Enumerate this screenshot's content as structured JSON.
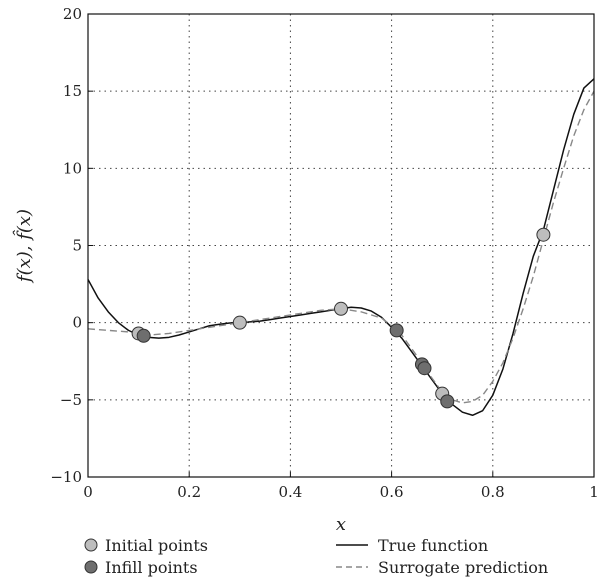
{
  "chart_data": {
    "type": "line",
    "xlabel": "x",
    "ylabel": "f(x), f̂(x)",
    "xlim": [
      0,
      1
    ],
    "ylim": [
      -10,
      20
    ],
    "x_ticks": [
      "0",
      "0.2",
      "0.4",
      "0.6",
      "0.8",
      "1"
    ],
    "y_ticks": [
      "−10",
      "−5",
      "0",
      "5",
      "10",
      "15",
      "20"
    ],
    "grid": true,
    "legend": {
      "placement": "bottom",
      "entries": [
        "Initial points",
        "Infill points",
        "True function",
        "Surrogate prediction"
      ]
    },
    "series": [
      {
        "name": "True function",
        "style": "solid",
        "color": "#111111",
        "x": [
          0.0,
          0.02,
          0.04,
          0.06,
          0.08,
          0.1,
          0.12,
          0.14,
          0.16,
          0.18,
          0.2,
          0.22,
          0.24,
          0.26,
          0.28,
          0.3,
          0.32,
          0.34,
          0.36,
          0.38,
          0.4,
          0.42,
          0.44,
          0.46,
          0.48,
          0.5,
          0.52,
          0.54,
          0.56,
          0.58,
          0.6,
          0.62,
          0.64,
          0.66,
          0.68,
          0.7,
          0.72,
          0.74,
          0.76,
          0.78,
          0.8,
          0.82,
          0.84,
          0.86,
          0.88,
          0.9,
          0.92,
          0.94,
          0.96,
          0.98,
          1.0
        ],
        "y": [
          2.8,
          1.6,
          0.7,
          0.0,
          -0.5,
          -0.8,
          -0.95,
          -1.0,
          -0.95,
          -0.8,
          -0.6,
          -0.4,
          -0.2,
          -0.1,
          -0.02,
          0.0,
          0.05,
          0.1,
          0.2,
          0.3,
          0.4,
          0.5,
          0.6,
          0.7,
          0.8,
          0.9,
          1.0,
          0.95,
          0.75,
          0.35,
          -0.3,
          -1.0,
          -1.9,
          -2.8,
          -3.7,
          -4.6,
          -5.3,
          -5.8,
          -6.0,
          -5.7,
          -4.7,
          -3.0,
          -0.7,
          1.9,
          4.3,
          6.0,
          8.6,
          11.2,
          13.5,
          15.2,
          15.8
        ]
      },
      {
        "name": "Surrogate prediction",
        "style": "dashed",
        "color": "#888888",
        "x": [
          0.0,
          0.04,
          0.08,
          0.1,
          0.12,
          0.16,
          0.2,
          0.24,
          0.28,
          0.3,
          0.34,
          0.38,
          0.42,
          0.46,
          0.5,
          0.54,
          0.58,
          0.6,
          0.62,
          0.64,
          0.66,
          0.68,
          0.7,
          0.72,
          0.74,
          0.76,
          0.78,
          0.8,
          0.82,
          0.84,
          0.86,
          0.88,
          0.9,
          0.92,
          0.94,
          0.96,
          0.98,
          1.0
        ],
        "y": [
          -0.4,
          -0.5,
          -0.6,
          -0.7,
          -0.8,
          -0.7,
          -0.5,
          -0.3,
          -0.1,
          0.0,
          0.2,
          0.4,
          0.6,
          0.8,
          0.9,
          0.7,
          0.3,
          -0.2,
          -0.8,
          -1.7,
          -2.6,
          -3.6,
          -4.5,
          -5.0,
          -5.2,
          -5.1,
          -4.7,
          -3.8,
          -2.6,
          -1.0,
          0.9,
          3.0,
          5.4,
          7.8,
          10.0,
          12.1,
          13.8,
          15.0
        ]
      }
    ],
    "initial_points": {
      "name": "Initial points",
      "color": "#bdbdbd",
      "x": [
        0.1,
        0.3,
        0.5,
        0.7,
        0.9
      ],
      "y": [
        -0.7,
        0.0,
        0.9,
        -4.6,
        5.7
      ]
    },
    "infill_points": {
      "name": "Infill points",
      "color": "#6e6e6e",
      "x": [
        0.11,
        0.61,
        0.66,
        0.665,
        0.71
      ],
      "y": [
        -0.85,
        -0.5,
        -2.7,
        -2.95,
        -5.1
      ]
    }
  }
}
